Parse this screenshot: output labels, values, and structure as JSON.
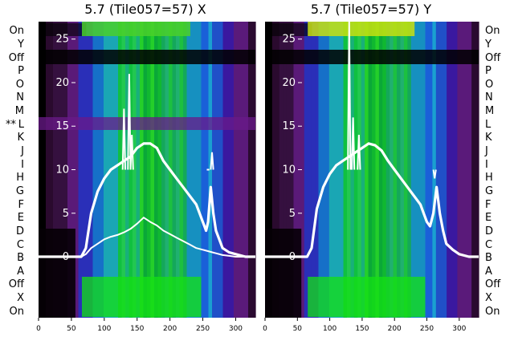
{
  "chart_data": [
    {
      "type": "line",
      "title": "5.7 (Tile057=57) X",
      "xlim": [
        0,
        330
      ],
      "ylim": [
        -7,
        27
      ],
      "x_ticks": [
        "0",
        "50",
        "100",
        "150",
        "200",
        "250",
        "300"
      ],
      "y_ticks": [
        "0",
        "5",
        "10",
        "15",
        "20",
        "25"
      ],
      "background": "heatmap",
      "row_labels": [
        "On",
        "X",
        "Off",
        "A",
        "B",
        "C",
        "D",
        "E",
        "F",
        "G",
        "H",
        "I",
        "J",
        "K",
        "L",
        "M",
        "N",
        "O",
        "P",
        "Off",
        "Y",
        "On"
      ],
      "row_marker": {
        "label": "L",
        "text": "**"
      },
      "series": [
        {
          "x": [
            0,
            20,
            40,
            55,
            65,
            72,
            80,
            90,
            100,
            110,
            120,
            130,
            140,
            150,
            160,
            170,
            180,
            190,
            200,
            210,
            220,
            230,
            240,
            245,
            250,
            255,
            258,
            262,
            266,
            270,
            275,
            280,
            290,
            300,
            315,
            330
          ],
          "y": [
            0,
            0,
            0,
            0,
            0,
            1,
            5,
            7.5,
            9,
            10,
            10.5,
            11,
            11.5,
            12.5,
            13,
            13,
            12.5,
            11,
            10,
            9,
            8,
            7,
            6,
            5,
            4,
            3,
            4,
            8,
            5,
            3,
            2,
            1,
            0.5,
            0.3,
            0,
            0
          ]
        },
        {
          "x": [
            0,
            20,
            40,
            55,
            65,
            72,
            80,
            90,
            100,
            110,
            120,
            130,
            140,
            150,
            160,
            170,
            180,
            190,
            200,
            210,
            220,
            230,
            240,
            250,
            260,
            265,
            270,
            280,
            290,
            300,
            315,
            330
          ],
          "y": [
            0,
            0,
            0,
            0,
            0,
            0.3,
            1,
            1.5,
            2,
            2.3,
            2.5,
            2.8,
            3.2,
            3.8,
            4.5,
            4,
            3.6,
            3,
            2.6,
            2.2,
            1.8,
            1.4,
            1,
            0.8,
            0.6,
            0.5,
            0.4,
            0.2,
            0.1,
            0,
            0,
            0
          ]
        }
      ],
      "spike_peaks": [
        {
          "x": 130,
          "y": 17
        },
        {
          "x": 138,
          "y": 21
        },
        {
          "x": 142,
          "y": 14
        },
        {
          "x": 258,
          "y": 10
        },
        {
          "x": 264,
          "y": 12
        }
      ]
    },
    {
      "type": "line",
      "title": "5.7 (Tile057=57) Y",
      "xlim": [
        0,
        330
      ],
      "ylim": [
        -7,
        27
      ],
      "x_ticks": [
        "0",
        "50",
        "100",
        "150",
        "200",
        "250",
        "300"
      ],
      "y_ticks": [
        "0",
        "5",
        "10",
        "15",
        "20",
        "25"
      ],
      "background": "heatmap",
      "row_labels": [
        "On",
        "X",
        "Off",
        "A",
        "B",
        "C",
        "D",
        "E",
        "F",
        "G",
        "H",
        "I",
        "J",
        "K",
        "L",
        "M",
        "N",
        "O",
        "P",
        "Off",
        "Y",
        "On"
      ],
      "series": [
        {
          "x": [
            0,
            20,
            40,
            55,
            65,
            72,
            80,
            90,
            100,
            110,
            120,
            130,
            140,
            150,
            160,
            170,
            180,
            190,
            200,
            210,
            220,
            230,
            240,
            245,
            250,
            255,
            260,
            265,
            270,
            275,
            280,
            290,
            300,
            315,
            330
          ],
          "y": [
            0,
            0,
            0,
            0,
            0,
            1,
            5.5,
            8,
            9.5,
            10.5,
            11,
            11.5,
            12,
            12.5,
            13,
            12.8,
            12.2,
            11,
            10,
            9,
            8,
            7,
            6,
            5,
            4,
            3.5,
            5,
            8,
            5,
            3,
            1.5,
            0.8,
            0.3,
            0,
            0
          ]
        }
      ],
      "spike_peaks": [
        {
          "x": 130,
          "y": 27
        },
        {
          "x": 136,
          "y": 16
        },
        {
          "x": 145,
          "y": 14
        },
        {
          "x": 262,
          "y": 9
        }
      ]
    }
  ],
  "colors": {
    "line": "#ffffff",
    "title": "#000000",
    "tick": "#ffffff",
    "label": "#000000"
  }
}
